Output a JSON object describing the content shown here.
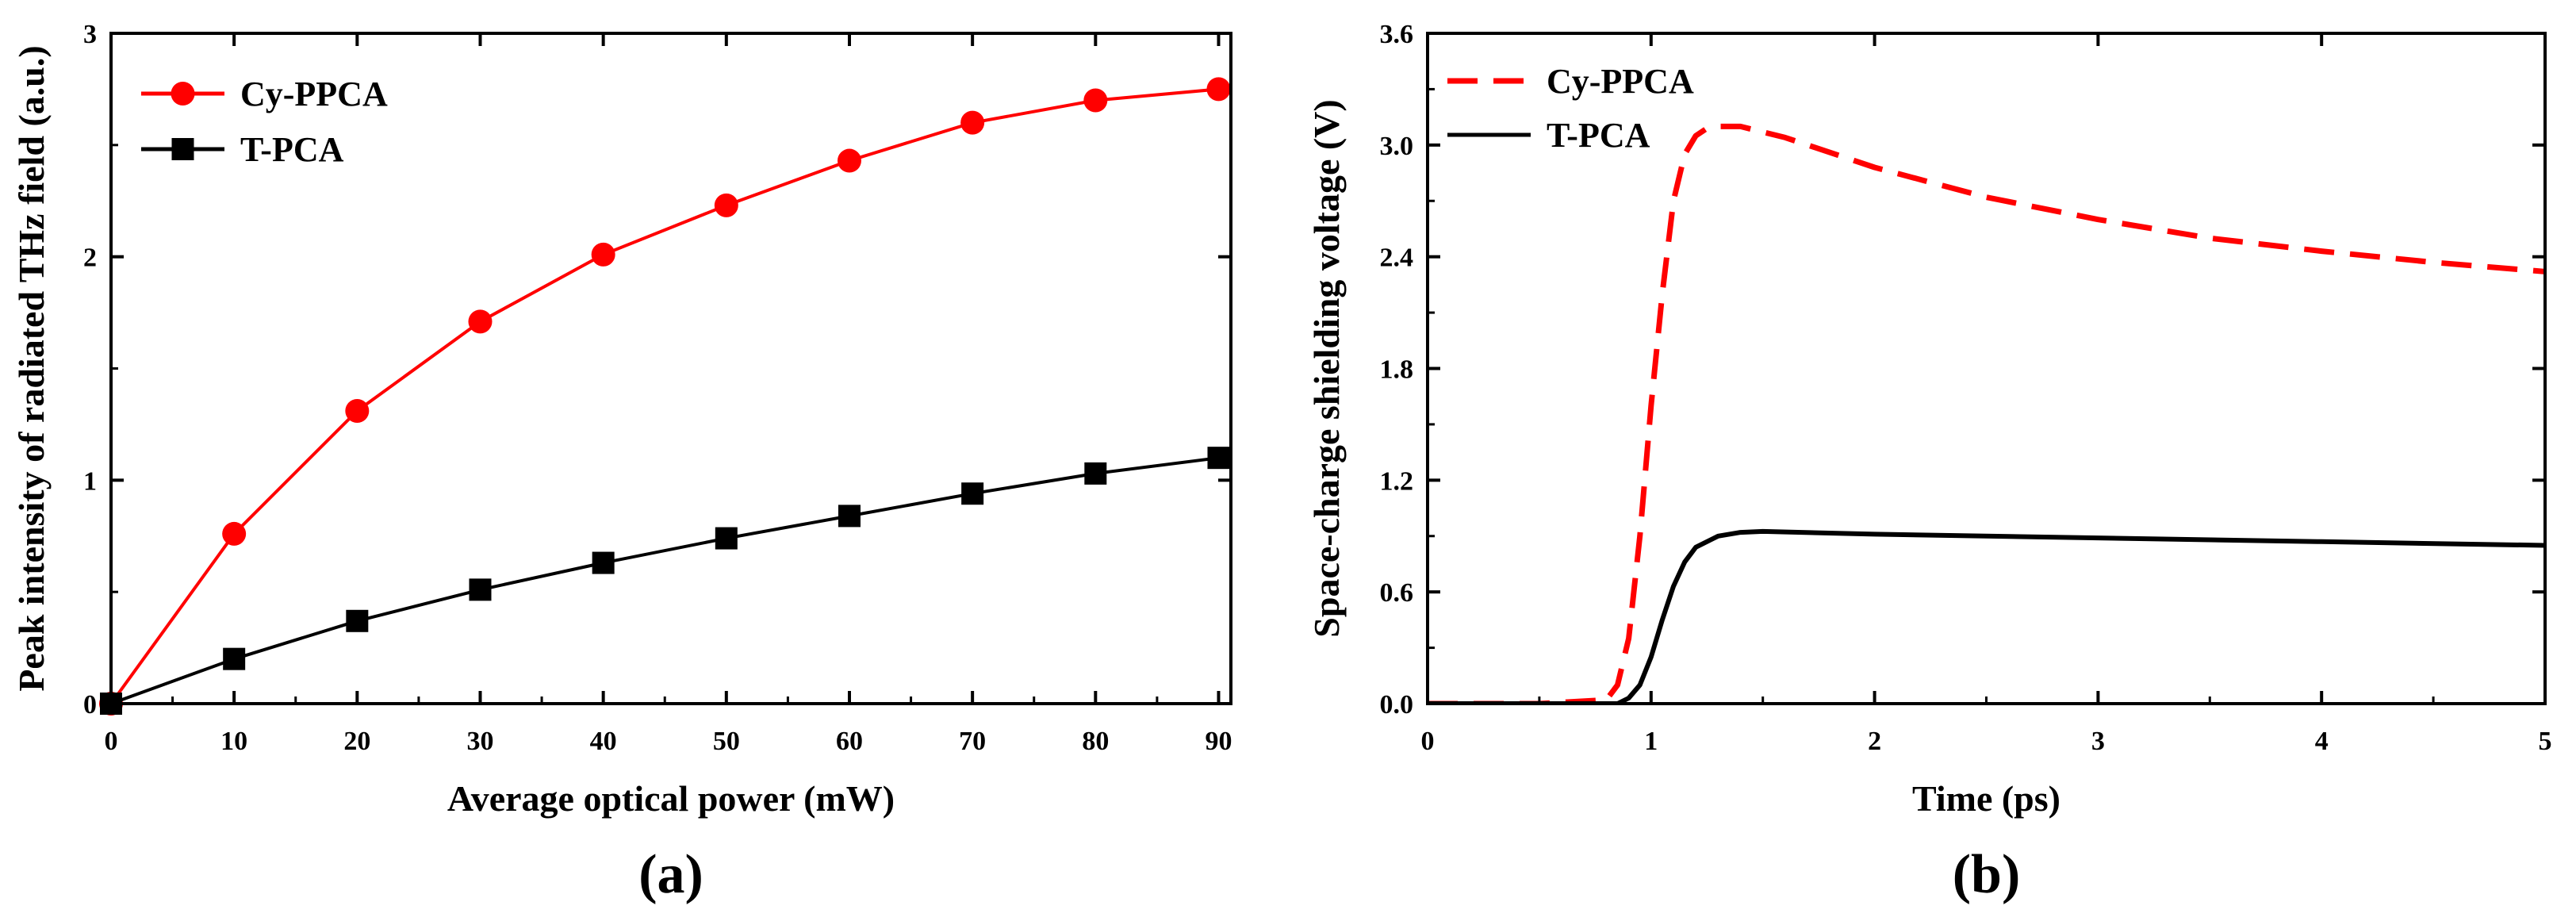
{
  "chart_data": [
    {
      "type": "line",
      "panel_label": "(a)",
      "xlabel": "Average optical power (mW)",
      "ylabel": "Peak intensity of radiated THz field (a.u.)",
      "xlim": [
        0,
        91
      ],
      "ylim": [
        0,
        3
      ],
      "xticks": [
        0,
        10,
        20,
        30,
        40,
        50,
        60,
        70,
        80,
        90
      ],
      "yticks": [
        0,
        1,
        2,
        3
      ],
      "grid": false,
      "legend": "top-left",
      "series": [
        {
          "name": "Cy-PPCA",
          "color": "#ff0000",
          "marker": "circle",
          "line": "solid",
          "x": [
            0,
            10,
            20,
            30,
            40,
            50,
            60,
            70,
            80,
            90
          ],
          "y": [
            0.0,
            0.76,
            1.31,
            1.71,
            2.01,
            2.23,
            2.43,
            2.6,
            2.7,
            2.75
          ]
        },
        {
          "name": "T-PCA",
          "color": "#000000",
          "marker": "square",
          "line": "solid",
          "x": [
            0,
            10,
            20,
            30,
            40,
            50,
            60,
            70,
            80,
            90
          ],
          "y": [
            0.0,
            0.2,
            0.37,
            0.51,
            0.63,
            0.74,
            0.84,
            0.94,
            1.03,
            1.1
          ]
        }
      ]
    },
    {
      "type": "line",
      "panel_label": "(b)",
      "xlabel": "Time (ps)",
      "ylabel": "Space-charge shielding voltage (V)",
      "xlim": [
        0,
        5
      ],
      "ylim": [
        0,
        3.6
      ],
      "xticks": [
        0,
        1,
        2,
        3,
        4,
        5
      ],
      "yticks": [
        "0.0",
        "0.6",
        "1.2",
        "1.8",
        "2.4",
        "3.0",
        "3.6"
      ],
      "grid": false,
      "legend": "top-left",
      "series": [
        {
          "name": "Cy-PPCA",
          "color": "#ff0000",
          "line": "dashed",
          "x": [
            0,
            0.5,
            0.8,
            0.85,
            0.9,
            0.95,
            1.0,
            1.05,
            1.1,
            1.15,
            1.2,
            1.25,
            1.3,
            1.4,
            1.6,
            2.0,
            2.5,
            3.0,
            3.5,
            4.0,
            4.5,
            5.0
          ],
          "y": [
            0,
            0,
            0.02,
            0.1,
            0.35,
            0.9,
            1.6,
            2.2,
            2.7,
            2.95,
            3.05,
            3.09,
            3.1,
            3.1,
            3.04,
            2.88,
            2.72,
            2.6,
            2.5,
            2.43,
            2.37,
            2.32
          ]
        },
        {
          "name": "T-PCA",
          "color": "#000000",
          "line": "solid",
          "x": [
            0,
            0.5,
            0.85,
            0.9,
            0.95,
            1.0,
            1.05,
            1.1,
            1.15,
            1.2,
            1.3,
            1.4,
            1.5,
            2.0,
            3.0,
            4.0,
            5.0
          ],
          "y": [
            0,
            0,
            0,
            0.03,
            0.1,
            0.25,
            0.45,
            0.63,
            0.76,
            0.84,
            0.9,
            0.92,
            0.925,
            0.91,
            0.89,
            0.87,
            0.85
          ]
        }
      ]
    }
  ]
}
